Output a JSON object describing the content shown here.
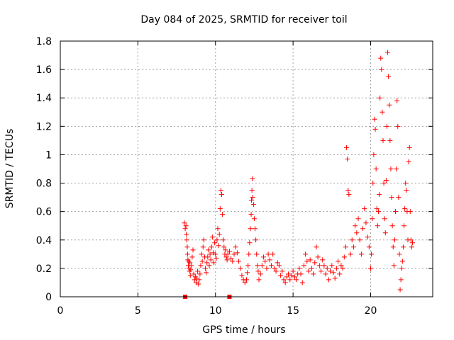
{
  "chart_data": {
    "type": "scatter",
    "title": "Day 084 of 2025, SRMTID for receiver toil",
    "xlabel": "GPS time / hours",
    "ylabel": "SRMTID / TECUs",
    "xlim": [
      0,
      24
    ],
    "ylim": [
      0,
      1.8
    ],
    "x_ticks": [
      0,
      5,
      10,
      15,
      20
    ],
    "x_tick_labels": [
      "0",
      "5",
      "10",
      "15",
      "20"
    ],
    "y_ticks": [
      0,
      0.2,
      0.4,
      0.6,
      0.8,
      1.0,
      1.2,
      1.4,
      1.6,
      1.8
    ],
    "y_tick_labels": [
      "0",
      "0.2",
      "0.4",
      "0.6",
      "0.8",
      "1",
      "1.2",
      "1.4",
      "1.6",
      "1.8"
    ],
    "grid": true,
    "color": "#ff0000",
    "marker": "plus",
    "zero_markers": [
      {
        "x": 8.05,
        "y": 0
      },
      {
        "x": 10.9,
        "y": 0
      }
    ],
    "series": [
      {
        "name": "SRMTID",
        "points": [
          [
            8.0,
            0.52
          ],
          [
            8.05,
            0.48
          ],
          [
            8.1,
            0.5
          ],
          [
            8.12,
            0.44
          ],
          [
            8.15,
            0.4
          ],
          [
            8.18,
            0.35
          ],
          [
            8.2,
            0.3
          ],
          [
            8.22,
            0.26
          ],
          [
            8.25,
            0.22
          ],
          [
            8.28,
            0.25
          ],
          [
            8.3,
            0.2
          ],
          [
            8.33,
            0.18
          ],
          [
            8.35,
            0.24
          ],
          [
            8.38,
            0.15
          ],
          [
            8.4,
            0.19
          ],
          [
            8.45,
            0.22
          ],
          [
            8.5,
            0.28
          ],
          [
            8.55,
            0.33
          ],
          [
            8.6,
            0.16
          ],
          [
            8.65,
            0.12
          ],
          [
            8.7,
            0.14
          ],
          [
            8.75,
            0.1
          ],
          [
            8.8,
            0.13
          ],
          [
            8.85,
            0.18
          ],
          [
            8.9,
            0.09
          ],
          [
            8.95,
            0.12
          ],
          [
            9.0,
            0.16
          ],
          [
            9.05,
            0.22
          ],
          [
            9.1,
            0.3
          ],
          [
            9.15,
            0.25
          ],
          [
            9.2,
            0.35
          ],
          [
            9.25,
            0.4
          ],
          [
            9.3,
            0.28
          ],
          [
            9.35,
            0.2
          ],
          [
            9.4,
            0.17
          ],
          [
            9.45,
            0.24
          ],
          [
            9.5,
            0.28
          ],
          [
            9.55,
            0.33
          ],
          [
            9.6,
            0.22
          ],
          [
            9.65,
            0.3
          ],
          [
            9.7,
            0.26
          ],
          [
            9.75,
            0.35
          ],
          [
            9.8,
            0.42
          ],
          [
            9.85,
            0.31
          ],
          [
            9.9,
            0.24
          ],
          [
            9.95,
            0.38
          ],
          [
            10.0,
            0.3
          ],
          [
            10.05,
            0.27
          ],
          [
            10.1,
            0.4
          ],
          [
            10.15,
            0.48
          ],
          [
            10.2,
            0.36
          ],
          [
            10.25,
            0.44
          ],
          [
            10.3,
            0.62
          ],
          [
            10.35,
            0.75
          ],
          [
            10.4,
            0.72
          ],
          [
            10.45,
            0.58
          ],
          [
            10.5,
            0.4
          ],
          [
            10.55,
            0.35
          ],
          [
            10.6,
            0.3
          ],
          [
            10.65,
            0.33
          ],
          [
            10.7,
            0.28
          ],
          [
            10.75,
            0.26
          ],
          [
            10.8,
            0.3
          ],
          [
            10.9,
            0.32
          ],
          [
            11.0,
            0.27
          ],
          [
            11.1,
            0.25
          ],
          [
            11.2,
            0.3
          ],
          [
            11.3,
            0.35
          ],
          [
            11.4,
            0.31
          ],
          [
            11.5,
            0.25
          ],
          [
            11.6,
            0.2
          ],
          [
            11.7,
            0.15
          ],
          [
            11.8,
            0.12
          ],
          [
            11.9,
            0.1
          ],
          [
            12.0,
            0.12
          ],
          [
            12.05,
            0.17
          ],
          [
            12.1,
            0.22
          ],
          [
            12.15,
            0.3
          ],
          [
            12.2,
            0.38
          ],
          [
            12.25,
            0.48
          ],
          [
            12.3,
            0.58
          ],
          [
            12.32,
            0.68
          ],
          [
            12.35,
            0.75
          ],
          [
            12.38,
            0.83
          ],
          [
            12.4,
            0.7
          ],
          [
            12.45,
            0.65
          ],
          [
            12.5,
            0.55
          ],
          [
            12.55,
            0.48
          ],
          [
            12.6,
            0.4
          ],
          [
            12.65,
            0.3
          ],
          [
            12.7,
            0.22
          ],
          [
            12.75,
            0.18
          ],
          [
            12.8,
            0.12
          ],
          [
            12.9,
            0.16
          ],
          [
            13.0,
            0.22
          ],
          [
            13.1,
            0.28
          ],
          [
            13.2,
            0.25
          ],
          [
            13.3,
            0.2
          ],
          [
            13.4,
            0.3
          ],
          [
            13.5,
            0.26
          ],
          [
            13.6,
            0.22
          ],
          [
            13.7,
            0.3
          ],
          [
            13.8,
            0.2
          ],
          [
            13.9,
            0.18
          ],
          [
            14.0,
            0.24
          ],
          [
            14.1,
            0.22
          ],
          [
            14.2,
            0.15
          ],
          [
            14.3,
            0.18
          ],
          [
            14.4,
            0.12
          ],
          [
            14.5,
            0.1
          ],
          [
            14.6,
            0.14
          ],
          [
            14.7,
            0.16
          ],
          [
            14.8,
            0.12
          ],
          [
            14.9,
            0.15
          ],
          [
            15.0,
            0.18
          ],
          [
            15.1,
            0.14
          ],
          [
            15.2,
            0.12
          ],
          [
            15.3,
            0.16
          ],
          [
            15.4,
            0.2
          ],
          [
            15.5,
            0.16
          ],
          [
            15.6,
            0.1
          ],
          [
            15.7,
            0.22
          ],
          [
            15.8,
            0.3
          ],
          [
            15.9,
            0.25
          ],
          [
            16.0,
            0.18
          ],
          [
            16.1,
            0.26
          ],
          [
            16.2,
            0.2
          ],
          [
            16.3,
            0.16
          ],
          [
            16.4,
            0.24
          ],
          [
            16.5,
            0.35
          ],
          [
            16.6,
            0.28
          ],
          [
            16.7,
            0.22
          ],
          [
            16.8,
            0.18
          ],
          [
            16.9,
            0.26
          ],
          [
            17.0,
            0.22
          ],
          [
            17.1,
            0.16
          ],
          [
            17.2,
            0.2
          ],
          [
            17.3,
            0.12
          ],
          [
            17.4,
            0.18
          ],
          [
            17.5,
            0.22
          ],
          [
            17.6,
            0.17
          ],
          [
            17.7,
            0.13
          ],
          [
            17.8,
            0.2
          ],
          [
            17.9,
            0.25
          ],
          [
            18.0,
            0.16
          ],
          [
            18.1,
            0.22
          ],
          [
            18.2,
            0.2
          ],
          [
            18.3,
            0.28
          ],
          [
            18.4,
            0.35
          ],
          [
            18.45,
            1.05
          ],
          [
            18.5,
            0.97
          ],
          [
            18.55,
            0.75
          ],
          [
            18.6,
            0.72
          ],
          [
            18.7,
            0.3
          ],
          [
            18.8,
            0.4
          ],
          [
            18.9,
            0.35
          ],
          [
            19.0,
            0.5
          ],
          [
            19.1,
            0.45
          ],
          [
            19.2,
            0.55
          ],
          [
            19.3,
            0.4
          ],
          [
            19.4,
            0.3
          ],
          [
            19.5,
            0.48
          ],
          [
            19.6,
            0.62
          ],
          [
            19.7,
            0.52
          ],
          [
            19.8,
            0.42
          ],
          [
            19.9,
            0.35
          ],
          [
            20.0,
            0.2
          ],
          [
            20.05,
            0.3
          ],
          [
            20.1,
            0.55
          ],
          [
            20.15,
            0.8
          ],
          [
            20.2,
            1.0
          ],
          [
            20.25,
            1.25
          ],
          [
            20.3,
            1.18
          ],
          [
            20.35,
            0.9
          ],
          [
            20.4,
            0.62
          ],
          [
            20.45,
            0.5
          ],
          [
            20.5,
            0.6
          ],
          [
            20.55,
            0.72
          ],
          [
            20.6,
            1.4
          ],
          [
            20.65,
            1.68
          ],
          [
            20.7,
            1.6
          ],
          [
            20.75,
            1.3
          ],
          [
            20.8,
            1.1
          ],
          [
            20.85,
            0.8
          ],
          [
            20.9,
            0.55
          ],
          [
            20.95,
            0.45
          ],
          [
            21.0,
            0.82
          ],
          [
            21.05,
            1.2
          ],
          [
            21.1,
            1.72
          ],
          [
            21.15,
            1.55
          ],
          [
            21.2,
            1.35
          ],
          [
            21.25,
            1.1
          ],
          [
            21.3,
            0.9
          ],
          [
            21.35,
            0.7
          ],
          [
            21.4,
            0.5
          ],
          [
            21.45,
            0.35
          ],
          [
            21.5,
            0.22
          ],
          [
            21.55,
            0.4
          ],
          [
            21.6,
            0.6
          ],
          [
            21.65,
            0.9
          ],
          [
            21.7,
            1.38
          ],
          [
            21.75,
            1.2
          ],
          [
            21.8,
            0.7
          ],
          [
            21.85,
            0.3
          ],
          [
            21.9,
            0.05
          ],
          [
            21.95,
            0.12
          ],
          [
            22.0,
            0.2
          ],
          [
            22.05,
            0.25
          ],
          [
            22.1,
            0.35
          ],
          [
            22.15,
            0.5
          ],
          [
            22.2,
            0.62
          ],
          [
            22.25,
            0.8
          ],
          [
            22.3,
            0.75
          ],
          [
            22.35,
            0.6
          ],
          [
            22.4,
            0.4
          ],
          [
            22.45,
            0.95
          ],
          [
            22.5,
            1.05
          ],
          [
            22.55,
            0.6
          ],
          [
            22.6,
            0.4
          ],
          [
            22.65,
            0.35
          ],
          [
            22.7,
            0.38
          ]
        ]
      }
    ]
  }
}
